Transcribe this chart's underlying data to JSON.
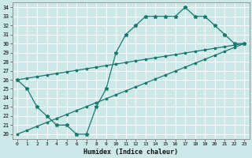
{
  "xlabel": "Humidex (Indice chaleur)",
  "bg_color": "#cce8e8",
  "grid_color": "#ffffff",
  "line_color": "#1a7a6e",
  "xlim": [
    -0.5,
    23.5
  ],
  "ylim": [
    19.5,
    34.5
  ],
  "xticks": [
    0,
    1,
    2,
    3,
    4,
    5,
    6,
    7,
    8,
    9,
    10,
    11,
    12,
    13,
    14,
    15,
    16,
    17,
    18,
    19,
    20,
    21,
    22,
    23
  ],
  "yticks": [
    20,
    21,
    22,
    23,
    24,
    25,
    26,
    27,
    28,
    29,
    30,
    31,
    32,
    33,
    34
  ],
  "hours": [
    0,
    1,
    2,
    3,
    4,
    5,
    6,
    7,
    8,
    9,
    10,
    11,
    12,
    13,
    14,
    15,
    16,
    17,
    18,
    19,
    20,
    21,
    22,
    23
  ],
  "curve_main": [
    26,
    25,
    23,
    22,
    21,
    21,
    20,
    20,
    23,
    25,
    29,
    31,
    32,
    33,
    33,
    33,
    33,
    34,
    33,
    33,
    32,
    31,
    30,
    30
  ],
  "curve_upper": [
    26.0,
    26.17,
    26.35,
    26.52,
    26.7,
    26.87,
    27.04,
    27.22,
    27.39,
    27.57,
    27.74,
    27.91,
    28.09,
    28.26,
    28.43,
    28.61,
    28.78,
    28.96,
    29.13,
    29.3,
    29.48,
    29.65,
    29.83,
    30.0
  ],
  "curve_lower": [
    20.0,
    20.43,
    20.87,
    21.3,
    21.74,
    22.17,
    22.61,
    23.04,
    23.48,
    23.91,
    24.35,
    24.78,
    25.22,
    25.65,
    26.09,
    26.52,
    26.96,
    27.39,
    27.83,
    28.26,
    28.7,
    29.13,
    29.57,
    30.0
  ]
}
